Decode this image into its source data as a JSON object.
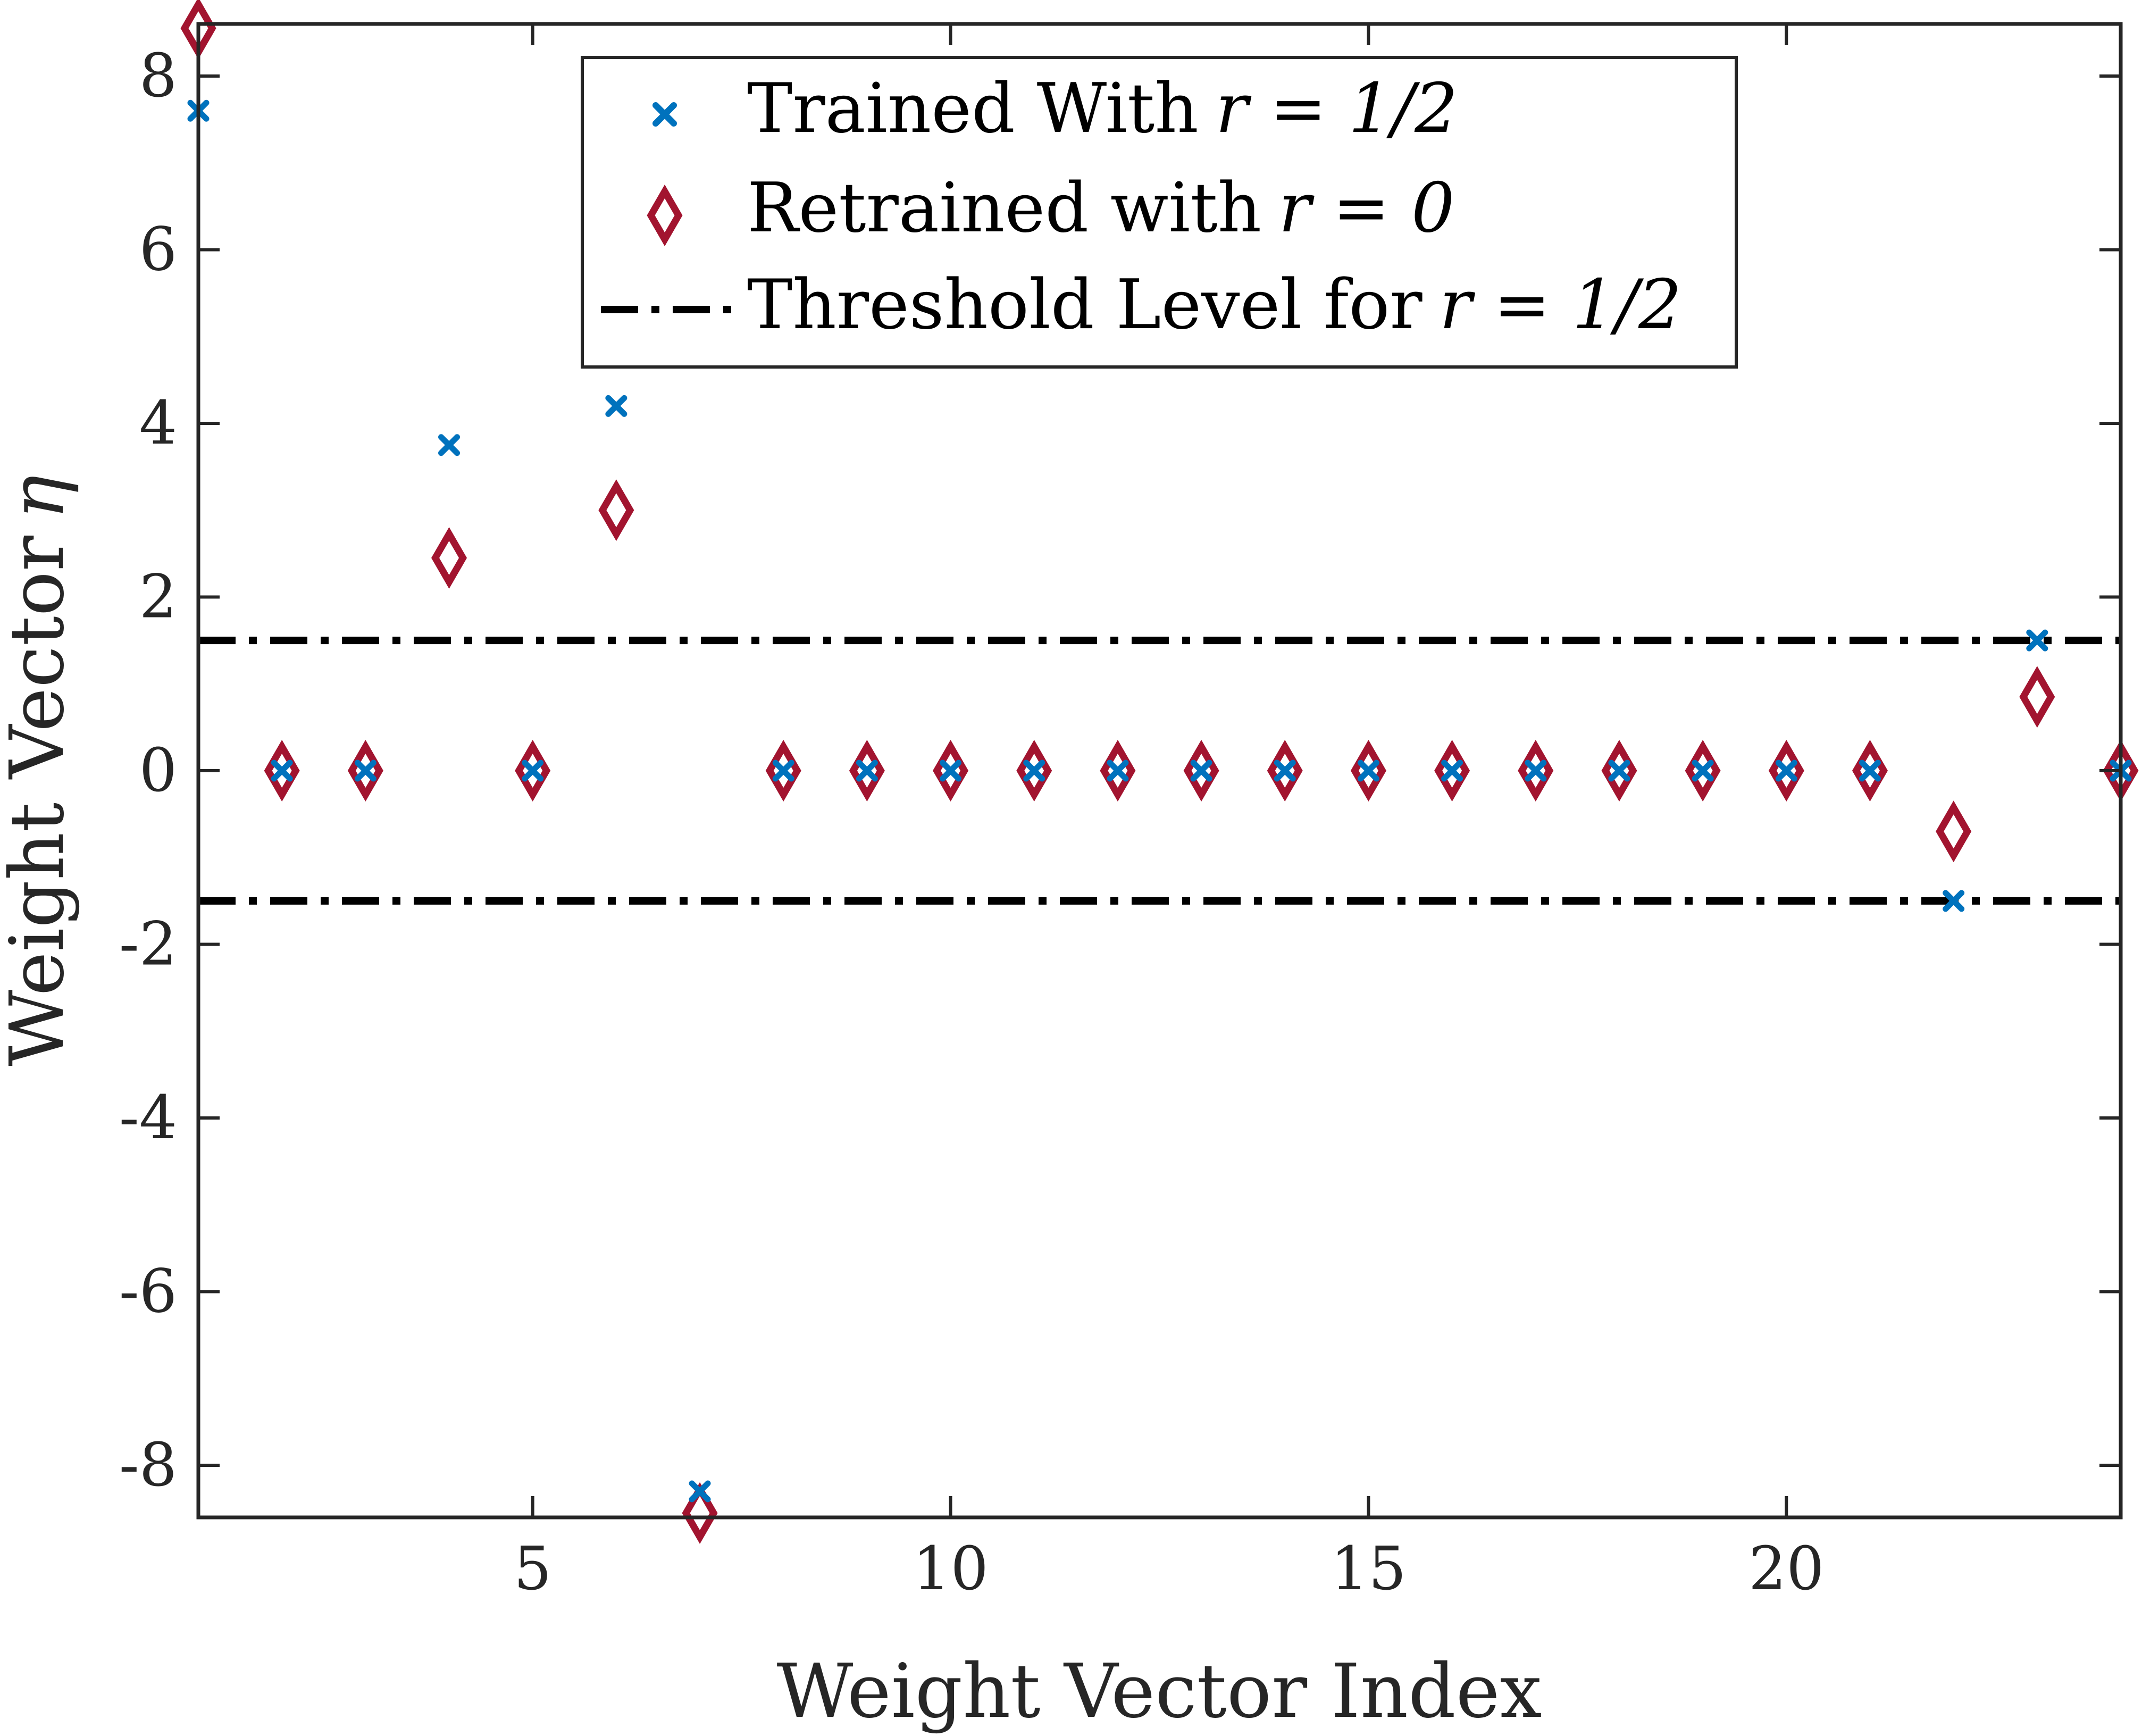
{
  "chart_data": {
    "type": "scatter",
    "xlabel": "Weight Vector Index",
    "ylabel": "Weight Vector",
    "ylabel_symbol": "η",
    "xlim": [
      1,
      24
    ],
    "ylim": [
      -8.6,
      8.6
    ],
    "xticks": [
      5,
      10,
      15,
      20
    ],
    "yticks": [
      -8,
      -6,
      -4,
      -2,
      0,
      2,
      4,
      6,
      8
    ],
    "ytick_labels": [
      "-8",
      "-6",
      "-4",
      "-2",
      "0",
      "2",
      "4",
      "6",
      "8"
    ],
    "grid": false,
    "legend_position": "top-center",
    "series": [
      {
        "name": "Trained With",
        "name_math": "r = 1/2",
        "marker": "x",
        "color": "#0072BD",
        "x": [
          1,
          2,
          3,
          4,
          5,
          6,
          7,
          8,
          9,
          10,
          11,
          12,
          13,
          14,
          15,
          16,
          17,
          18,
          19,
          20,
          21,
          22,
          23,
          24
        ],
        "y": [
          7.6,
          0,
          0,
          3.75,
          0,
          4.2,
          -8.3,
          0,
          0,
          0,
          0,
          0,
          0,
          0,
          0,
          0,
          0,
          0,
          0,
          0,
          0,
          -1.5,
          1.5,
          0
        ]
      },
      {
        "name": "Retrained with",
        "name_math": "r = 0",
        "marker": "diamond",
        "color": "#A2142F",
        "x": [
          1,
          2,
          3,
          4,
          5,
          6,
          7,
          8,
          9,
          10,
          11,
          12,
          13,
          14,
          15,
          16,
          17,
          18,
          19,
          20,
          21,
          22,
          23,
          24
        ],
        "y": [
          8.55,
          0,
          0,
          2.45,
          0,
          3.0,
          -8.55,
          0,
          0,
          0,
          0,
          0,
          0,
          0,
          0,
          0,
          0,
          0,
          0,
          0,
          0,
          -0.7,
          0.85,
          0
        ]
      }
    ],
    "threshold": {
      "name": "Threshold Level for",
      "name_math": "r = 1/2",
      "values": [
        1.5,
        -1.5
      ],
      "color": "#000000",
      "style": "dash-dot"
    }
  }
}
